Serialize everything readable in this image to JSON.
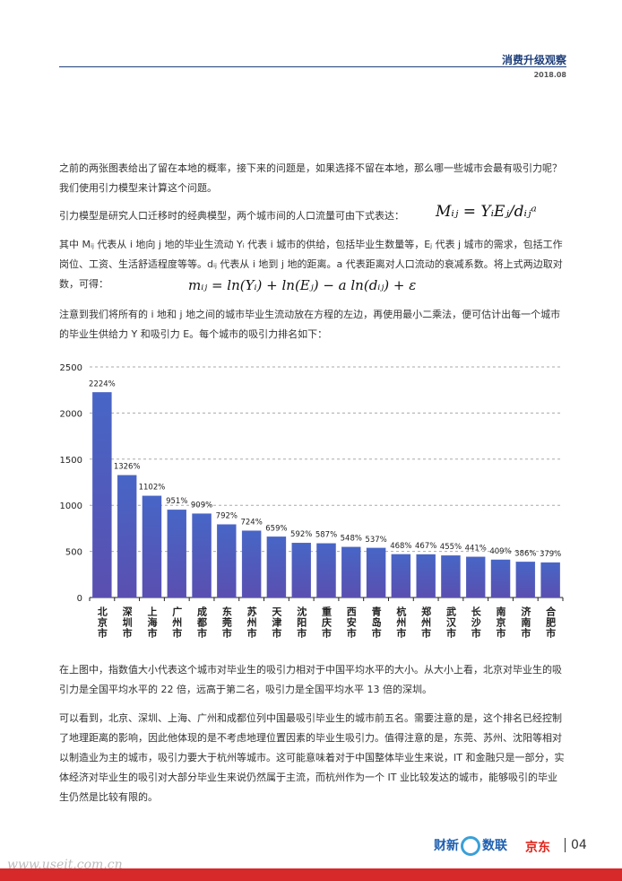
{
  "header": {
    "title": "消费升级观察",
    "date": "2018.08"
  },
  "paragraphs": [
    "之前的两张图表给出了留在本地的概率，接下来的问题是，如果选择不留在本地，那么哪一些城市会最有吸引力呢？我们使用引力模型来计算这个问题。",
    "引力模型是研究人口迁移时的经典模型，两个城市间的人口流量可由下式表达：",
    "其中 Mᵢⱼ 代表从 i 地向 j 地的毕业生流动 Yᵢ 代表 i 城市的供给，包括毕业生数量等，Eⱼ 代表 j 城市的需求，包括工作岗位、工资、生活舒适程度等等。dᵢⱼ 代表从 i 地到 j 地的距离。a 代表距离对人口流动的衰减系数。将上式两边取对数，可得：",
    "注意到我们将所有的 i 地和 j 地之间的城市毕业生流动放在方程的左边，再使用最小二乘法，便可估计出每一个城市的毕业生供给力 Y 和吸引力 E。每个城市的吸引力排名如下：",
    "在上图中，指数值大小代表这个城市对毕业生的吸引力相对于中国平均水平的大小。从大小上看，北京对毕业生的吸引力是全国平均水平的 22 倍，远高于第二名，吸引力是全国平均水平 13 倍的深圳。",
    "可以看到，北京、深圳、上海、广州和成都位列中国最吸引毕业生的城市前五名。需要注意的是，这个排名已经控制了地理距离的影响，因此他体现的是不考虑地理位置因素的毕业生吸引力。值得注意的是，东莞、苏州、沈阳等相对以制造业为主的城市，吸引力要大于杭州等城市。这可能意味着对于中国整体毕业生来说，IT 和金融只是一部分，实体经济对毕业生的吸引对大部分毕业生来说仍然属于主流，而杭州作为一个 IT 业比较发达的城市，能够吸引的毕业生仍然是比较有限的。"
  ],
  "formulas": [
    "Mᵢⱼ = YᵢEⱼ/dᵢⱼᵃ",
    "mᵢⱼ = ln(Yᵢ) + ln(Eⱼ) − a ln(dᵢⱼ) + ε"
  ],
  "chart_data": {
    "type": "bar",
    "categories": [
      "北京市",
      "深圳市",
      "上海市",
      "广州市",
      "成都市",
      "东莞市",
      "苏州市",
      "天津市",
      "沈阳市",
      "重庆市",
      "西安市",
      "青岛市",
      "杭州市",
      "郑州市",
      "武汉市",
      "长沙市",
      "南京市",
      "济南市",
      "合肥市"
    ],
    "values": [
      2224,
      1326,
      1102,
      951,
      909,
      792,
      724,
      659,
      592,
      587,
      548,
      537,
      468,
      467,
      455,
      441,
      409,
      386,
      379
    ],
    "value_labels": [
      "2224%",
      "1326%",
      "1102%",
      "951%",
      "909%",
      "792%",
      "724%",
      "659%",
      "592%",
      "587%",
      "548%",
      "537%",
      "468%",
      "467%",
      "455%",
      "441%",
      "409%",
      "386%",
      "379%"
    ],
    "color": "#4e5cc0",
    "ylim": [
      0,
      2500
    ],
    "yticks": [
      0,
      500,
      1000,
      1500,
      2000,
      2500
    ],
    "grid": true
  },
  "footer": {
    "logo1a": "财新",
    "logo1b": "数联",
    "logo2": "京东",
    "page": "04",
    "watermark": "www.useit.com.cn"
  }
}
